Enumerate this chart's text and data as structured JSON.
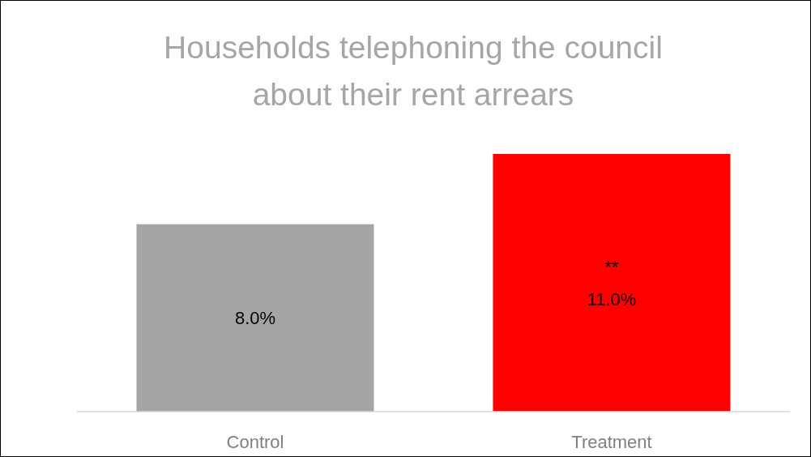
{
  "chart_data": {
    "type": "bar",
    "title": "Households telephoning the council about their rent arrears",
    "categories": [
      "Control",
      "Treatment"
    ],
    "values": [
      8.0,
      11.0
    ],
    "colors": [
      "#a5a5a5",
      "#ff0000"
    ],
    "value_labels": [
      "8.0%",
      "11.0%"
    ],
    "annotations": [
      "**"
    ]
  }
}
